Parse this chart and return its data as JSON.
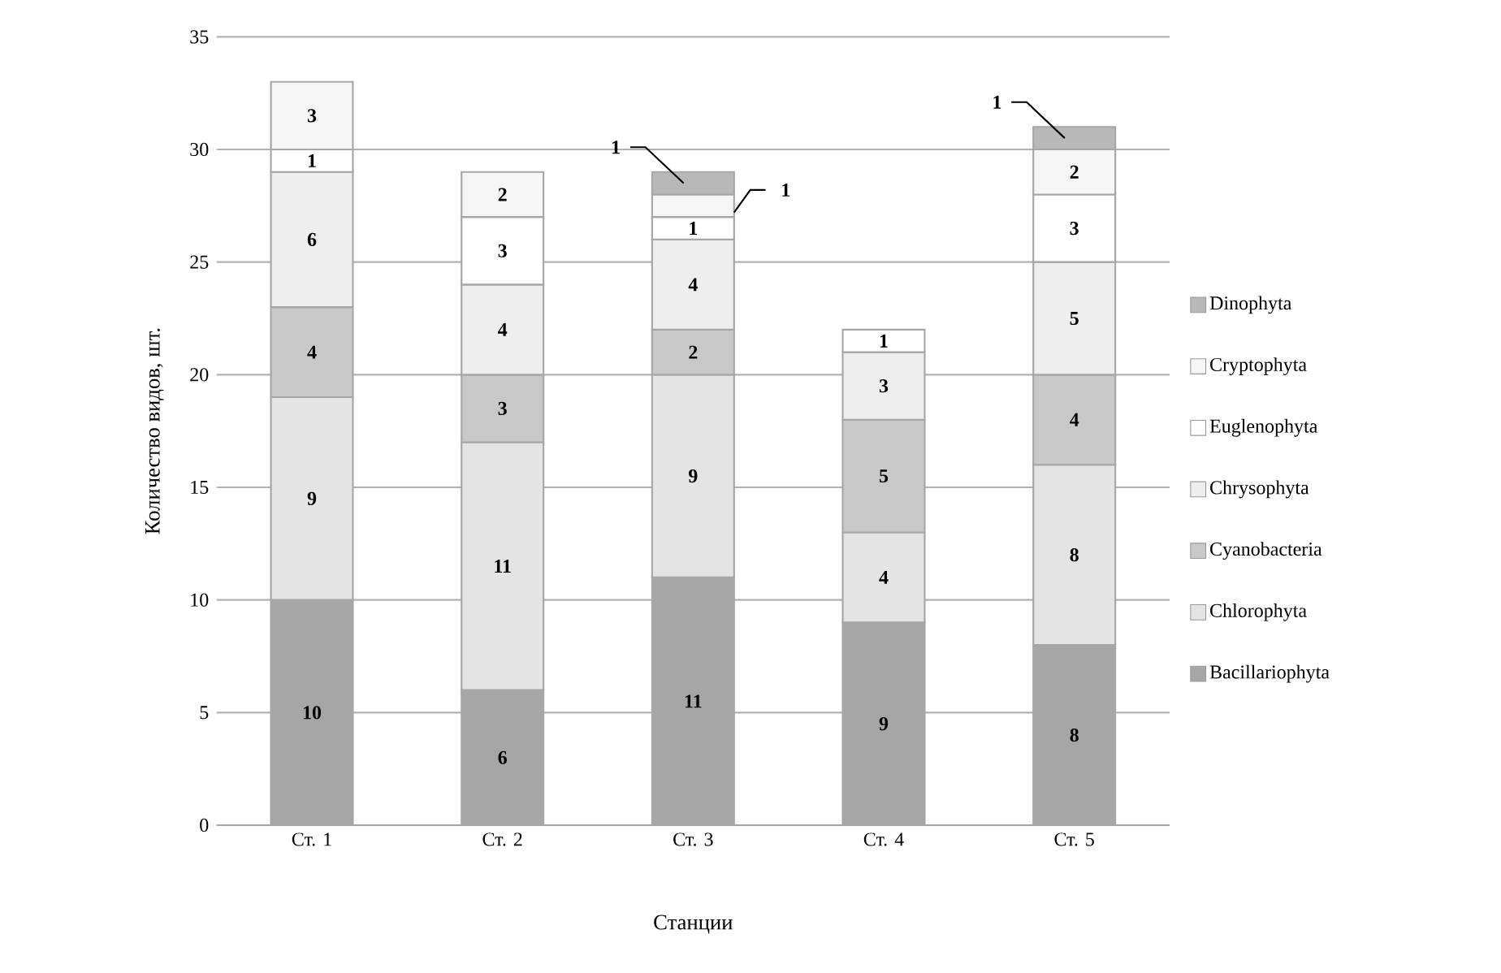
{
  "chart_data": {
    "type": "bar",
    "stacked": true,
    "xlabel": "Станции",
    "ylabel": "Количество видов, шт.",
    "categories": [
      "Ст. 1",
      "Ст. 2",
      "Ст. 3",
      "Ст. 4",
      "Ст. 5"
    ],
    "ylim": [
      0,
      35
    ],
    "yticks": [
      0,
      5,
      10,
      15,
      20,
      25,
      30,
      35
    ],
    "grid": "y",
    "legend": "right",
    "series": [
      {
        "name": "Bacillariophyta",
        "color": "#a6a6a6",
        "values": [
          10,
          6,
          11,
          9,
          8
        ],
        "value_labels": [
          "10",
          "6",
          "11",
          "9",
          "8"
        ]
      },
      {
        "name": "Chlorophyta",
        "color": "#e4e4e4",
        "values": [
          9,
          11,
          9,
          4,
          8
        ],
        "value_labels": [
          "9",
          "11",
          "9",
          "4",
          "8"
        ]
      },
      {
        "name": "Cyanobacteria",
        "color": "#c8c8c8",
        "values": [
          4,
          3,
          2,
          5,
          4
        ],
        "value_labels": [
          "4",
          "3",
          "2",
          "5",
          "4"
        ]
      },
      {
        "name": "Chrysophyta",
        "color": "#eeeeee",
        "values": [
          6,
          4,
          4,
          3,
          5
        ],
        "value_labels": [
          "6",
          "4",
          "4",
          "3",
          "5"
        ]
      },
      {
        "name": "Euglenophyta",
        "color": "#ffffff",
        "values": [
          1,
          3,
          1,
          1,
          3
        ],
        "value_labels": [
          "1",
          "3",
          "1",
          "1",
          "3"
        ]
      },
      {
        "name": "Cryptophyta",
        "color": "#f5f5f5",
        "values": [
          3,
          2,
          1,
          null,
          2
        ],
        "value_labels": [
          "3",
          "2",
          "1",
          null,
          "2"
        ]
      },
      {
        "name": "Dinophyta",
        "color": "#b8b8b8",
        "values": [
          null,
          null,
          1,
          null,
          1
        ],
        "value_labels": [
          null,
          null,
          "1",
          null,
          "1"
        ]
      }
    ]
  }
}
